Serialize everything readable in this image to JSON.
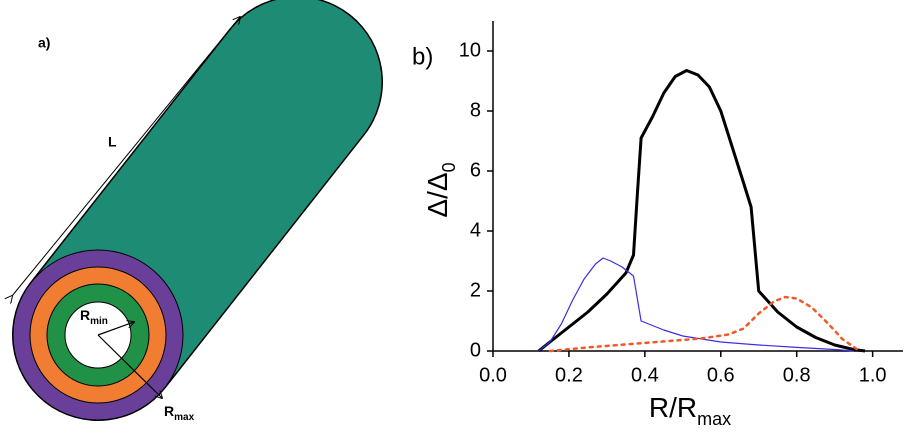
{
  "diagram": {
    "panel_label": "a)",
    "length_label": "L",
    "r_min": {
      "main": "R",
      "sub": "min"
    },
    "r_max": {
      "main": "R",
      "sub": "max"
    }
  },
  "chart_data": {
    "type": "line",
    "panel_label": "b)",
    "x_label": {
      "main": "R/R",
      "sub": "max"
    },
    "y_label": {
      "main": "Δ/Δ",
      "sub": "0"
    },
    "xlim": [
      0,
      1.08
    ],
    "ylim": [
      0,
      11
    ],
    "xticks": [
      {
        "value": 0,
        "label": "0.0"
      },
      0.2,
      0.4,
      0.6,
      0.8,
      {
        "value": 1,
        "label": "1.0"
      }
    ],
    "yticks": [
      0,
      2,
      4,
      6,
      8,
      10
    ],
    "series": [
      {
        "color": "#000000",
        "style": "solid",
        "x": [
          0.12,
          0.15,
          0.2,
          0.25,
          0.3,
          0.35,
          0.37,
          0.38,
          0.39,
          0.42,
          0.45,
          0.48,
          0.51,
          0.54,
          0.57,
          0.6,
          0.63,
          0.66,
          0.68,
          0.7,
          0.75,
          0.8,
          0.85,
          0.9,
          0.95,
          0.98
        ],
        "values": [
          0,
          0.3,
          0.8,
          1.3,
          1.9,
          2.6,
          3.2,
          5.2,
          7.1,
          7.8,
          8.6,
          9.15,
          9.35,
          9.2,
          8.8,
          8.0,
          6.8,
          5.6,
          4.8,
          2.0,
          1.3,
          0.8,
          0.45,
          0.2,
          0.05,
          0
        ]
      },
      {
        "color": "#3b2fe0",
        "style": "solid",
        "x": [
          0.12,
          0.15,
          0.18,
          0.21,
          0.24,
          0.27,
          0.29,
          0.31,
          0.34,
          0.37,
          0.39,
          0.45,
          0.5,
          0.6,
          0.7,
          0.8,
          0.9,
          0.95
        ],
        "values": [
          0,
          0.3,
          0.9,
          1.7,
          2.4,
          2.9,
          3.1,
          3.0,
          2.8,
          2.5,
          1.0,
          0.7,
          0.5,
          0.3,
          0.2,
          0.12,
          0.05,
          0
        ]
      },
      {
        "color": "#f05a28",
        "style": "dotted",
        "x": [
          0.15,
          0.25,
          0.35,
          0.45,
          0.55,
          0.62,
          0.66,
          0.7,
          0.74,
          0.77,
          0.8,
          0.84,
          0.88,
          0.92,
          0.96
        ],
        "values": [
          0,
          0.12,
          0.22,
          0.32,
          0.42,
          0.55,
          0.75,
          1.25,
          1.65,
          1.8,
          1.75,
          1.45,
          0.95,
          0.4,
          0.05
        ]
      }
    ]
  }
}
